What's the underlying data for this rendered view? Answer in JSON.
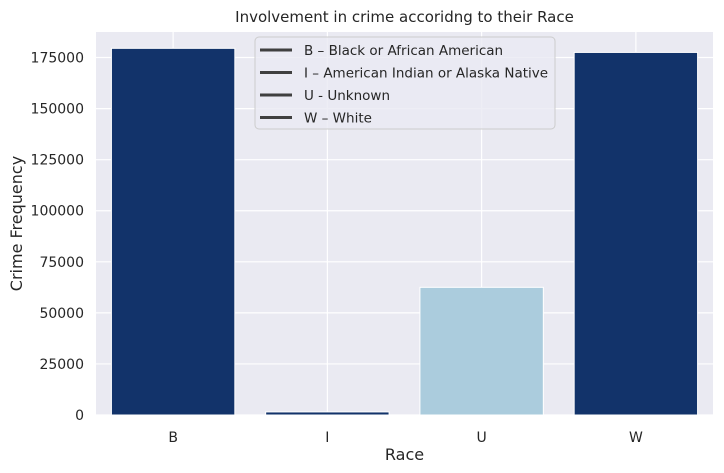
{
  "chart_data": {
    "type": "bar",
    "title": "Involvement in crime accoridng to their Race",
    "xlabel": "Race",
    "ylabel": "Crime Frequency",
    "categories": [
      "B",
      "I",
      "U",
      "W"
    ],
    "values": [
      179500,
      1500,
      62500,
      177500
    ],
    "ylim": [
      0,
      187500
    ],
    "yticks": [
      0,
      25000,
      50000,
      75000,
      100000,
      125000,
      150000,
      175000
    ],
    "ytick_labels": [
      "0",
      "25000",
      "50000",
      "75000",
      "100000",
      "125000",
      "150000",
      "175000"
    ],
    "bar_colors": [
      "#12336a",
      "#12336a",
      "#abccdd",
      "#12336a"
    ],
    "grid": true,
    "legend": {
      "position": "top-center",
      "entries": [
        "B – Black or African American",
        "I – American Indian or Alaska Native",
        "U - Unknown",
        "W – White"
      ]
    }
  },
  "colors": {
    "background": "#eaeaf2",
    "grid": "#ffffff",
    "legend_line": "#3f3f3f"
  }
}
